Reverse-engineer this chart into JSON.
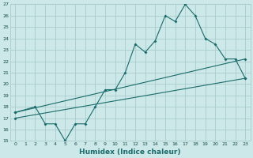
{
  "xlabel": "Humidex (Indice chaleur)",
  "bg_color": "#cce8e8",
  "grid_color": "#aacccc",
  "line_color": "#1a6b6b",
  "xlim": [
    -0.5,
    23.5
  ],
  "ylim": [
    15,
    27
  ],
  "xticks": [
    0,
    1,
    2,
    3,
    4,
    5,
    6,
    7,
    8,
    9,
    10,
    11,
    12,
    13,
    14,
    15,
    16,
    17,
    18,
    19,
    20,
    21,
    22,
    23
  ],
  "yticks": [
    15,
    16,
    17,
    18,
    19,
    20,
    21,
    22,
    23,
    24,
    25,
    26,
    27
  ],
  "line1_x": [
    0,
    2,
    3,
    4,
    5,
    6,
    7,
    8,
    9,
    10,
    11,
    12,
    13,
    14,
    15,
    16,
    17,
    18,
    19,
    20,
    21,
    22,
    23
  ],
  "line1_y": [
    17.5,
    18.0,
    16.5,
    16.5,
    15.0,
    16.5,
    16.5,
    18.0,
    19.5,
    19.5,
    21.0,
    23.5,
    22.8,
    23.8,
    26.0,
    25.5,
    27.0,
    26.0,
    24.0,
    23.5,
    22.2,
    22.2,
    20.5
  ],
  "line2_x": [
    0,
    23
  ],
  "line2_y": [
    17.5,
    22.2
  ],
  "line3_x": [
    0,
    23
  ],
  "line3_y": [
    17.0,
    20.5
  ]
}
